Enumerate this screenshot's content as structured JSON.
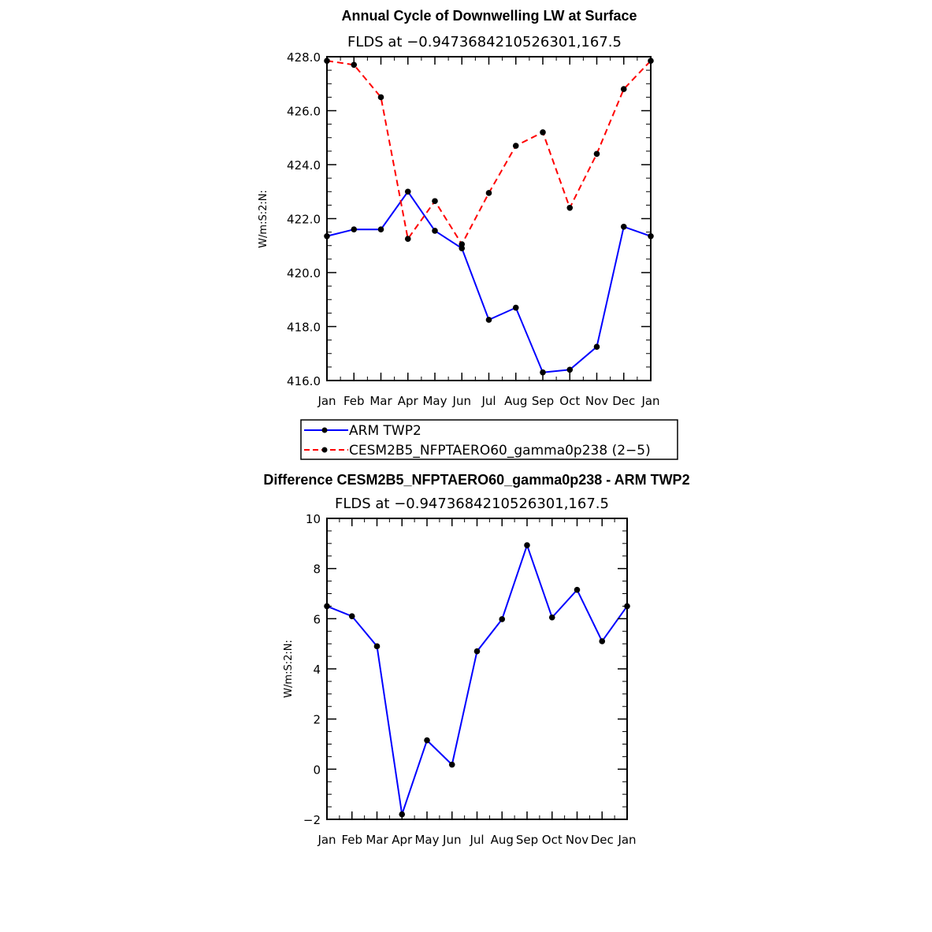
{
  "chart_data": [
    {
      "type": "line",
      "title": "Annual Cycle of Downwelling LW at Surface",
      "subtitle": "FLDS at −0.9473684210526301,167.5",
      "ylabel": "W/m:S:2:N:",
      "categories": [
        "Jan",
        "Feb",
        "Mar",
        "Apr",
        "May",
        "Jun",
        "Jul",
        "Aug",
        "Sep",
        "Oct",
        "Nov",
        "Dec",
        "Jan"
      ],
      "ylim": [
        416.0,
        428.0
      ],
      "yticks": [
        "416.0",
        "418.0",
        "420.0",
        "422.0",
        "424.0",
        "426.0",
        "428.0"
      ],
      "series": [
        {
          "name": "ARM TWP2",
          "color": "#0000ff",
          "dash": "solid",
          "values": [
            421.35,
            421.6,
            421.6,
            423.0,
            421.55,
            420.9,
            418.25,
            418.7,
            416.3,
            416.4,
            417.25,
            421.7,
            421.35
          ]
        },
        {
          "name": "CESM2B5_NFPTAERO60_gamma0p238 (2−5)",
          "color": "#ff0000",
          "dash": "dashed",
          "values": [
            427.85,
            427.7,
            426.5,
            421.25,
            422.65,
            421.05,
            422.95,
            424.7,
            425.2,
            422.4,
            424.4,
            426.8,
            427.85
          ]
        }
      ],
      "legend": "below"
    },
    {
      "type": "line",
      "title": "Difference CESM2B5_NFPTAERO60_gamma0p238 - ARM TWP2",
      "subtitle": "FLDS at −0.9473684210526301,167.5",
      "ylabel": "W/m:S:2:N:",
      "categories": [
        "Jan",
        "Feb",
        "Mar",
        "Apr",
        "May",
        "Jun",
        "Jul",
        "Aug",
        "Sep",
        "Oct",
        "Nov",
        "Dec",
        "Jan"
      ],
      "ylim": [
        -2,
        10
      ],
      "yticks": [
        "−2",
        "0",
        "2",
        "4",
        "6",
        "8",
        "10"
      ],
      "series": [
        {
          "color": "#0000ff",
          "dash": "solid",
          "values": [
            6.5,
            6.1,
            4.9,
            -1.8,
            1.15,
            0.18,
            4.7,
            5.98,
            8.93,
            6.05,
            7.15,
            5.1,
            6.5
          ]
        }
      ]
    }
  ]
}
